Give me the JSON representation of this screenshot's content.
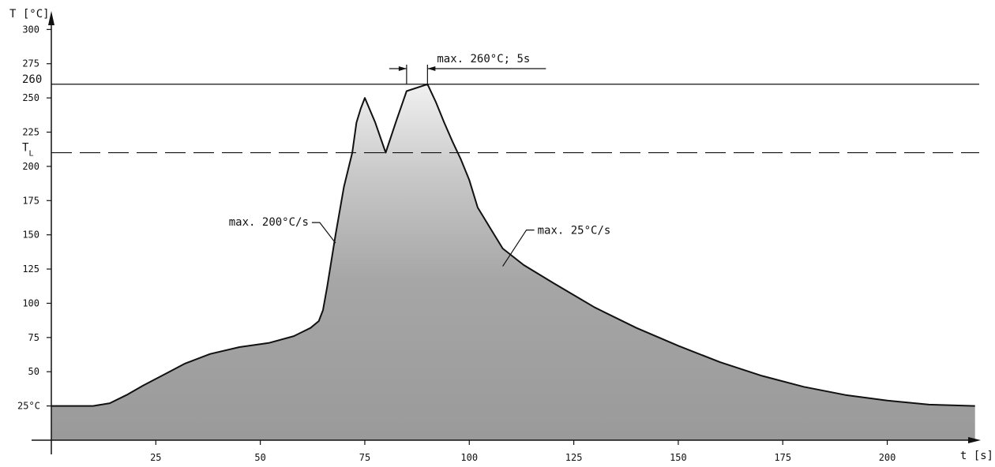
{
  "chart_data": {
    "type": "area",
    "title": "",
    "xlabel": "t [s]",
    "ylabel": "T [°C]",
    "xlim": [
      0,
      222
    ],
    "ylim": [
      0,
      310
    ],
    "x_ticks": [
      25,
      50,
      75,
      100,
      125,
      150,
      175,
      200
    ],
    "y_ticks": [
      25,
      50,
      75,
      100,
      125,
      150,
      175,
      200,
      225,
      250,
      275,
      300
    ],
    "y_tick_labels": [
      "25°C",
      "50",
      "75",
      "100",
      "125",
      "150",
      "175",
      "200",
      "225",
      "250",
      "275",
      "300"
    ],
    "grid": false,
    "series": [
      {
        "x": [
          0,
          10,
          14,
          18,
          22,
          27,
          32,
          38,
          45,
          52,
          58,
          62,
          64,
          65,
          66,
          68,
          70,
          72,
          73,
          74,
          75,
          77.5,
          80,
          82.5,
          85,
          90,
          92,
          94,
          96,
          98,
          100,
          102,
          105,
          108,
          113,
          120,
          130,
          140,
          150,
          160,
          170,
          180,
          190,
          200,
          210,
          221
        ],
        "y": [
          25,
          25,
          27,
          33,
          40,
          48,
          56,
          63,
          68,
          71,
          76,
          82,
          87,
          95,
          112,
          150,
          185,
          210,
          232,
          242,
          250,
          232,
          210,
          233,
          255,
          260,
          247,
          232,
          218,
          205,
          190,
          170,
          155,
          140,
          128,
          115,
          97,
          82,
          69,
          57,
          47,
          39,
          33,
          29,
          26,
          25
        ]
      }
    ],
    "reference_lines": [
      {
        "label": "260",
        "y": 260,
        "style": "solid"
      },
      {
        "label": "T",
        "subscript": "L",
        "y": 210,
        "style": "dashed"
      }
    ],
    "annotations": [
      {
        "text": "max. 260°C; 5s",
        "x_start": 85,
        "x_end": 90,
        "y": 260
      },
      {
        "text": "max. 200°C/s",
        "x": 68,
        "y": 144
      },
      {
        "text": "max. 25°C/s",
        "x": 108,
        "y": 127
      }
    ]
  }
}
